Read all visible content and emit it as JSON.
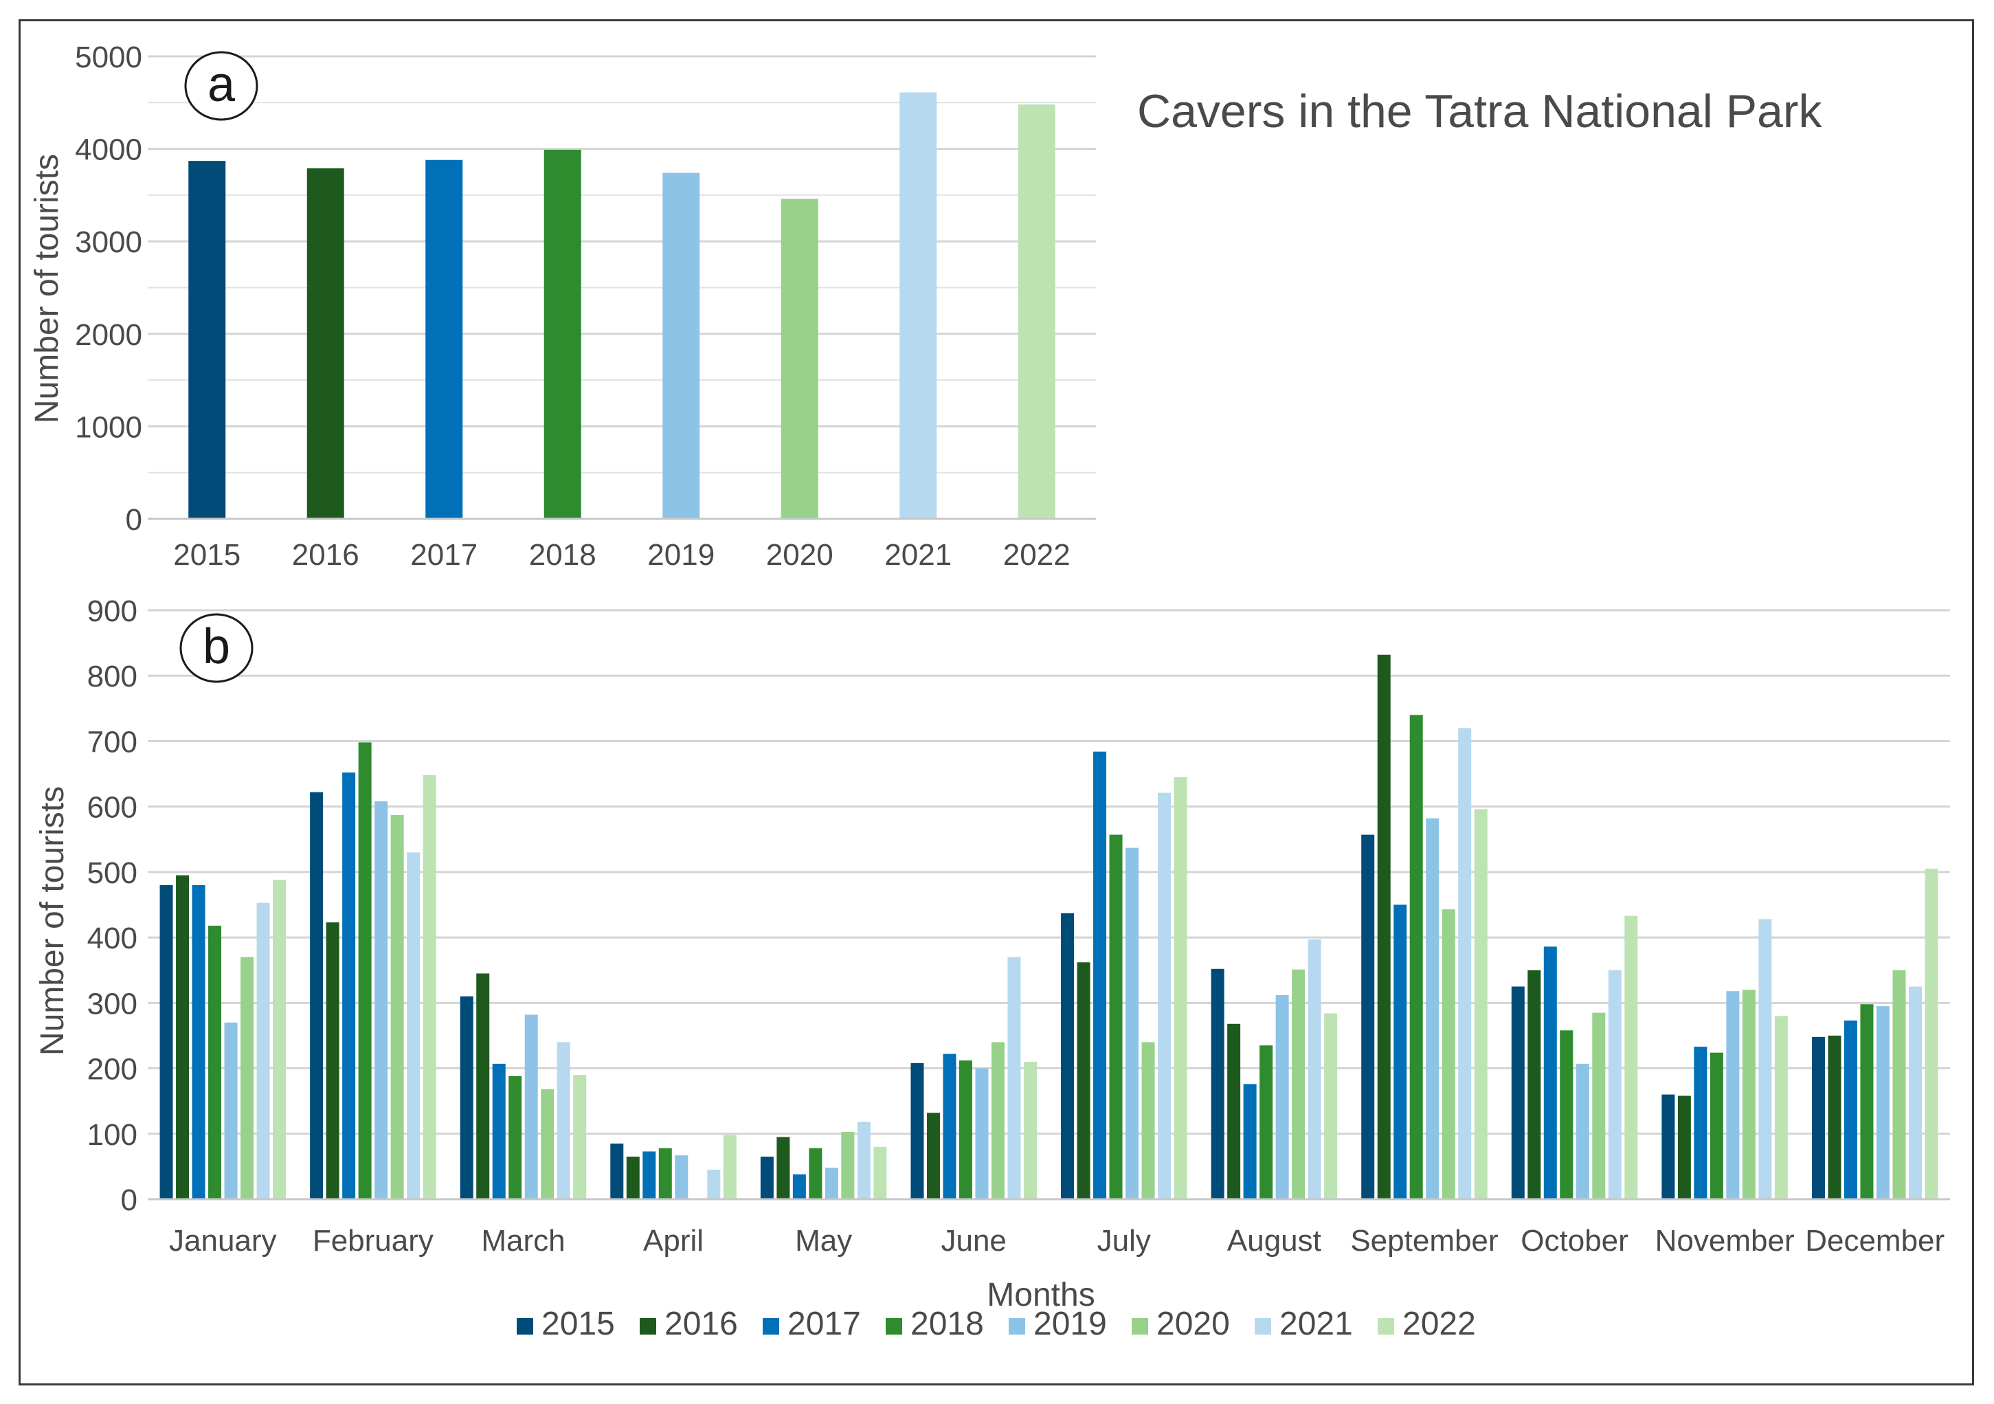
{
  "chart_data": [
    {
      "panel_label": "a",
      "type": "bar",
      "title": "Cavers in the Tatra National Park",
      "ylabel": "Number of tourists",
      "xlabel": "",
      "categories": [
        "2015",
        "2016",
        "2017",
        "2018",
        "2019",
        "2020",
        "2021",
        "2022"
      ],
      "values": [
        3870,
        3790,
        3880,
        3990,
        3740,
        3460,
        4610,
        4480
      ],
      "colors": [
        "#004b78",
        "#1e5a1e",
        "#0070b8",
        "#2e8b2e",
        "#8dc3e6",
        "#98d18a",
        "#b6d9f0",
        "#bde3b2"
      ],
      "ylim": [
        0,
        5000
      ],
      "yticks": [
        "0",
        "1000",
        "2000",
        "3000",
        "4000",
        "5000"
      ],
      "grid": true
    },
    {
      "panel_label": "b",
      "type": "bar",
      "title": "",
      "xlabel": "Months",
      "ylabel": "Number of tourists",
      "categories": [
        "January",
        "February",
        "March",
        "April",
        "May",
        "June",
        "July",
        "August",
        "September",
        "October",
        "November",
        "December"
      ],
      "ylim": [
        0,
        900
      ],
      "yticks": [
        "0",
        "100",
        "200",
        "300",
        "400",
        "500",
        "600",
        "700",
        "800",
        "900"
      ],
      "grid": true,
      "legend_position": "bottom",
      "series": [
        {
          "name": "2015",
          "color": "#004b78",
          "values": [
            480,
            622,
            310,
            85,
            65,
            208,
            437,
            352,
            557,
            325,
            160,
            248
          ]
        },
        {
          "name": "2016",
          "color": "#1e5a1e",
          "values": [
            495,
            423,
            345,
            65,
            95,
            132,
            362,
            268,
            832,
            350,
            158,
            250
          ]
        },
        {
          "name": "2017",
          "color": "#0070b8",
          "values": [
            480,
            652,
            207,
            73,
            38,
            222,
            684,
            176,
            450,
            386,
            233,
            273
          ]
        },
        {
          "name": "2018",
          "color": "#2e8b2e",
          "values": [
            418,
            698,
            188,
            78,
            78,
            212,
            557,
            235,
            740,
            258,
            224,
            298
          ]
        },
        {
          "name": "2019",
          "color": "#8dc3e6",
          "values": [
            270,
            608,
            282,
            67,
            48,
            200,
            537,
            312,
            582,
            207,
            318,
            295
          ]
        },
        {
          "name": "2020",
          "color": "#98d18a",
          "values": [
            370,
            587,
            168,
            0,
            103,
            240,
            240,
            351,
            443,
            285,
            320,
            350
          ]
        },
        {
          "name": "2021",
          "color": "#b6d9f0",
          "values": [
            453,
            530,
            240,
            45,
            118,
            370,
            621,
            397,
            720,
            350,
            428,
            325
          ]
        },
        {
          "name": "2022",
          "color": "#bde3b2",
          "values": [
            488,
            648,
            190,
            98,
            80,
            210,
            645,
            284,
            596,
            433,
            280,
            505
          ]
        }
      ]
    }
  ]
}
